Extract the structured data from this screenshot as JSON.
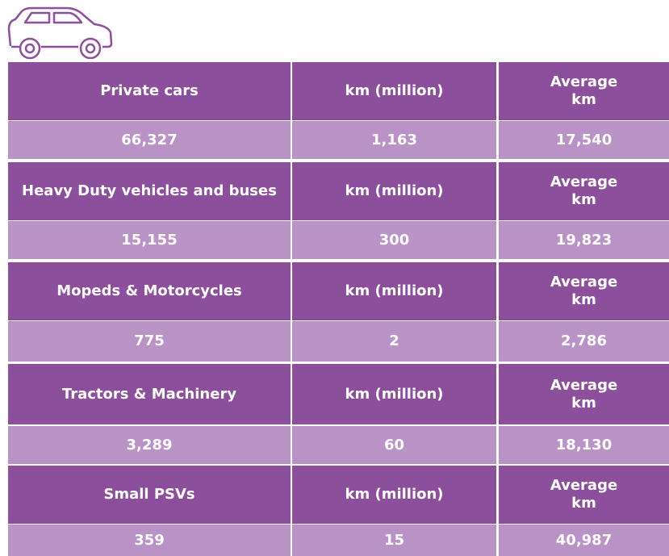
{
  "table": {
    "sections": [
      {
        "header": [
          "Private cars",
          "km (million)",
          "Average km"
        ],
        "values": [
          "66,327",
          "1,163",
          "17,540"
        ]
      },
      {
        "header": [
          "Heavy Duty vehicles and buses",
          "km (million)",
          "Average km"
        ],
        "values": [
          "15,155",
          "300",
          "19,823"
        ]
      },
      {
        "header": [
          "Mopeds & Motorcycles",
          "km (million)",
          "Average km"
        ],
        "values": [
          "775",
          "2",
          "2,786"
        ]
      },
      {
        "header": [
          "Tractors & Machinery",
          "km (million)",
          "Average km"
        ],
        "values": [
          "3,289",
          "60",
          "18,130"
        ]
      },
      {
        "header": [
          "Small PSVs",
          "km (million)",
          "Average km"
        ],
        "values": [
          "359",
          "15",
          "40,987"
        ]
      }
    ]
  }
}
